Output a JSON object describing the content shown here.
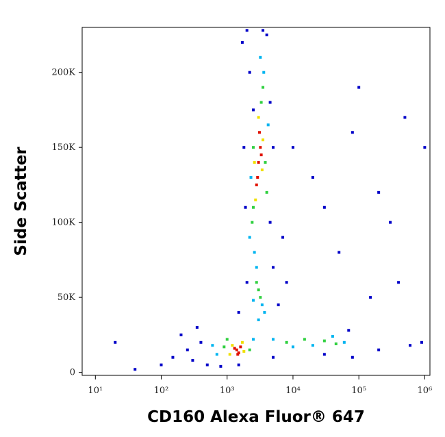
{
  "chart_data": {
    "type": "scatter",
    "x_label": "CD160 Alexa Fluor® 647",
    "y_label": "Side Scatter",
    "x_log": true,
    "xlim": [
      6.3,
      1200000
    ],
    "xticks": [
      {
        "value": 10,
        "label": "10¹"
      },
      {
        "value": 100,
        "label": "10²"
      },
      {
        "value": 1000,
        "label": "10³"
      },
      {
        "value": 10000,
        "label": "10⁴"
      },
      {
        "value": 100000,
        "label": "10⁵"
      },
      {
        "value": 1000000,
        "label": "10⁶"
      }
    ],
    "ylim": [
      -2000,
      230000
    ],
    "yticks": [
      0,
      {
        "value": 50000,
        "label": "50K"
      },
      {
        "value": 100000,
        "label": "100K"
      },
      {
        "value": 150000,
        "label": "150K"
      },
      {
        "value": 200000,
        "label": "200K"
      }
    ],
    "series": [
      {
        "color": "#0000c8",
        "x": [
          300,
          400,
          250,
          500,
          200,
          350,
          2000,
          3500,
          4000,
          2200,
          4500,
          1800,
          5000,
          1900,
          4500,
          2000,
          5000,
          1500,
          6000,
          8000,
          7000,
          10000,
          20000,
          30000,
          100000,
          80000,
          200000,
          500000,
          50000,
          300000,
          1000000,
          150000,
          400000,
          80000,
          200000,
          600000,
          900000,
          100,
          40,
          20,
          150,
          5000,
          30000,
          70000,
          1500,
          800,
          2500,
          1700
        ],
        "values": [
          8000,
          20000,
          15000,
          5000,
          25000,
          30000,
          228000,
          228000,
          225000,
          200000,
          180000,
          150000,
          150000,
          110000,
          100000,
          60000,
          70000,
          40000,
          45000,
          60000,
          90000,
          150000,
          130000,
          110000,
          190000,
          160000,
          120000,
          170000,
          80000,
          100000,
          150000,
          50000,
          60000,
          10000,
          15000,
          18000,
          20000,
          5000,
          2000,
          20000,
          10000,
          10000,
          12000,
          28000,
          5000,
          4000,
          175000,
          220000
        ]
      },
      {
        "color": "#00b4f0",
        "x": [
          700,
          2500,
          600,
          2800,
          3400,
          2600,
          3700,
          2200,
          3600,
          3200,
          4200,
          2300,
          5000,
          20000,
          60000,
          40000,
          10000,
          3000,
          2500
        ],
        "values": [
          12000,
          22000,
          18000,
          70000,
          45000,
          80000,
          40000,
          90000,
          200000,
          210000,
          165000,
          130000,
          22000,
          18000,
          20000,
          24000,
          17000,
          35000,
          48000
        ]
      },
      {
        "color": "#30d040",
        "x": [
          900,
          2200,
          1000,
          3000,
          2800,
          3200,
          3500,
          3300,
          2500,
          2400,
          3800,
          2500,
          8000,
          15000,
          30000,
          45000,
          4000
        ],
        "values": [
          17000,
          15000,
          22000,
          55000,
          60000,
          50000,
          190000,
          180000,
          110000,
          100000,
          140000,
          150000,
          20000,
          22000,
          21000,
          19000,
          120000
        ]
      },
      {
        "color": "#f0e000",
        "x": [
          1200,
          1800,
          1100,
          1700,
          3000,
          3400,
          2700,
          3500,
          2600
        ],
        "values": [
          18000,
          14000,
          12000,
          20000,
          170000,
          135000,
          115000,
          155000,
          140000
        ]
      },
      {
        "color": "#e01000",
        "x": [
          1400,
          1500,
          1300,
          1600,
          1450,
          3000,
          3200,
          2900,
          3100,
          3300,
          2800
        ],
        "values": [
          15000,
          13000,
          16000,
          17000,
          12000,
          140000,
          150000,
          130000,
          160000,
          145000,
          125000
        ]
      }
    ]
  }
}
